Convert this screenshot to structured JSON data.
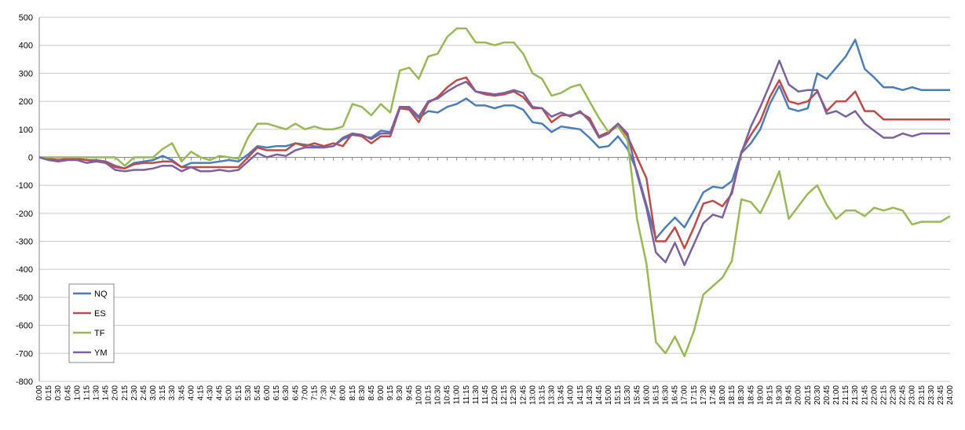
{
  "chart_data": {
    "type": "line",
    "categories": [
      "0:00",
      "0:15",
      "0:30",
      "0:45",
      "1:00",
      "1:15",
      "1:30",
      "1:45",
      "2:00",
      "2:15",
      "2:30",
      "2:45",
      "3:00",
      "3:15",
      "3:30",
      "3:45",
      "4:00",
      "4:15",
      "4:30",
      "4:45",
      "5:00",
      "5:15",
      "5:30",
      "5:45",
      "6:00",
      "6:15",
      "6:30",
      "6:45",
      "7:00",
      "7:15",
      "7:30",
      "7:45",
      "8:00",
      "8:15",
      "8:30",
      "8:45",
      "9:00",
      "9:15",
      "9:30",
      "9:45",
      "10:00",
      "10:15",
      "10:30",
      "10:45",
      "11:00",
      "11:15",
      "11:30",
      "11:45",
      "12:00",
      "12:15",
      "12:30",
      "12:45",
      "13:00",
      "13:15",
      "13:30",
      "13:45",
      "14:00",
      "14:15",
      "14:30",
      "14:45",
      "15:00",
      "15:15",
      "15:30",
      "15:45",
      "16:00",
      "16:15",
      "16:30",
      "16:45",
      "17:00",
      "17:15",
      "17:30",
      "17:45",
      "18:00",
      "18:15",
      "18:30",
      "18:45",
      "19:00",
      "19:15",
      "19:30",
      "19:45",
      "20:00",
      "20:15",
      "20:30",
      "20:45",
      "21:00",
      "21:15",
      "21:30",
      "21:45",
      "22:00",
      "22:15",
      "22:30",
      "22:45",
      "23:00",
      "23:15",
      "23:30",
      "23:45",
      "24:00"
    ],
    "series": [
      {
        "name": "NQ",
        "color": "#4a7ebb",
        "values": [
          0,
          -5,
          -10,
          -5,
          -5,
          -10,
          -10,
          -15,
          -30,
          -40,
          -20,
          -15,
          -10,
          5,
          -10,
          -35,
          -20,
          -20,
          -20,
          -15,
          -10,
          -15,
          10,
          40,
          35,
          40,
          40,
          50,
          45,
          40,
          35,
          40,
          65,
          80,
          75,
          70,
          95,
          90,
          180,
          175,
          140,
          165,
          160,
          180,
          190,
          210,
          185,
          185,
          175,
          185,
          185,
          170,
          125,
          120,
          90,
          110,
          105,
          100,
          70,
          35,
          40,
          75,
          30,
          -50,
          -170,
          -290,
          -250,
          -215,
          -250,
          -190,
          -125,
          -105,
          -110,
          -85,
          15,
          50,
          100,
          190,
          255,
          175,
          165,
          175,
          300,
          280,
          320,
          360,
          420,
          315,
          285,
          250,
          250,
          240,
          250,
          240,
          240,
          240,
          240
        ]
      },
      {
        "name": "ES",
        "color": "#be4b48",
        "values": [
          0,
          -5,
          -10,
          -5,
          -5,
          -10,
          -15,
          -15,
          -35,
          -40,
          -25,
          -20,
          -20,
          -15,
          -15,
          -35,
          -35,
          -35,
          -35,
          -35,
          -35,
          -35,
          0,
          35,
          25,
          25,
          25,
          50,
          40,
          50,
          40,
          50,
          40,
          85,
          75,
          50,
          75,
          75,
          175,
          170,
          125,
          195,
          215,
          250,
          275,
          285,
          235,
          225,
          220,
          225,
          235,
          215,
          175,
          175,
          125,
          150,
          150,
          160,
          140,
          75,
          90,
          120,
          75,
          0,
          -75,
          -300,
          -300,
          -250,
          -325,
          -250,
          -165,
          -155,
          -175,
          -130,
          20,
          80,
          130,
          215,
          275,
          200,
          190,
          200,
          235,
          165,
          200,
          200,
          235,
          165,
          165,
          135,
          135,
          135,
          135,
          135,
          135,
          135,
          135
        ]
      },
      {
        "name": "TF",
        "color": "#98b954",
        "values": [
          0,
          0,
          0,
          0,
          0,
          0,
          0,
          0,
          0,
          -30,
          0,
          0,
          0,
          30,
          50,
          -15,
          20,
          0,
          -10,
          5,
          0,
          -5,
          70,
          120,
          120,
          110,
          100,
          120,
          100,
          110,
          100,
          100,
          110,
          190,
          180,
          150,
          190,
          160,
          310,
          320,
          280,
          360,
          370,
          430,
          460,
          460,
          410,
          410,
          400,
          410,
          410,
          370,
          300,
          280,
          220,
          230,
          250,
          260,
          200,
          140,
          90,
          110,
          60,
          -220,
          -380,
          -660,
          -700,
          -640,
          -710,
          -620,
          -490,
          -460,
          -430,
          -370,
          -150,
          -160,
          -200,
          -130,
          -50,
          -220,
          -175,
          -130,
          -100,
          -170,
          -220,
          -190,
          -190,
          -210,
          -180,
          -190,
          -180,
          -190,
          -240,
          -230,
          -230,
          -230,
          -210
        ]
      },
      {
        "name": "YM",
        "color": "#7d60a0",
        "values": [
          0,
          -10,
          -15,
          -10,
          -10,
          -20,
          -15,
          -20,
          -45,
          -50,
          -45,
          -45,
          -40,
          -30,
          -30,
          -50,
          -35,
          -50,
          -50,
          -45,
          -50,
          -45,
          -15,
          15,
          0,
          10,
          5,
          25,
          35,
          35,
          35,
          40,
          70,
          85,
          80,
          65,
          85,
          85,
          180,
          180,
          145,
          200,
          210,
          235,
          255,
          270,
          235,
          230,
          225,
          230,
          240,
          230,
          180,
          175,
          145,
          160,
          145,
          165,
          130,
          70,
          85,
          120,
          85,
          -60,
          -180,
          -340,
          -375,
          -305,
          -385,
          -310,
          -235,
          -205,
          -215,
          -120,
          15,
          110,
          180,
          260,
          345,
          260,
          235,
          240,
          240,
          155,
          165,
          145,
          165,
          120,
          95,
          70,
          70,
          85,
          75,
          85,
          85,
          85,
          85
        ]
      }
    ],
    "ylim": [
      -800,
      500
    ],
    "yticks": [
      -800,
      -700,
      -600,
      -500,
      -400,
      -300,
      -200,
      -100,
      0,
      100,
      200,
      300,
      400,
      500
    ],
    "grid": true
  }
}
